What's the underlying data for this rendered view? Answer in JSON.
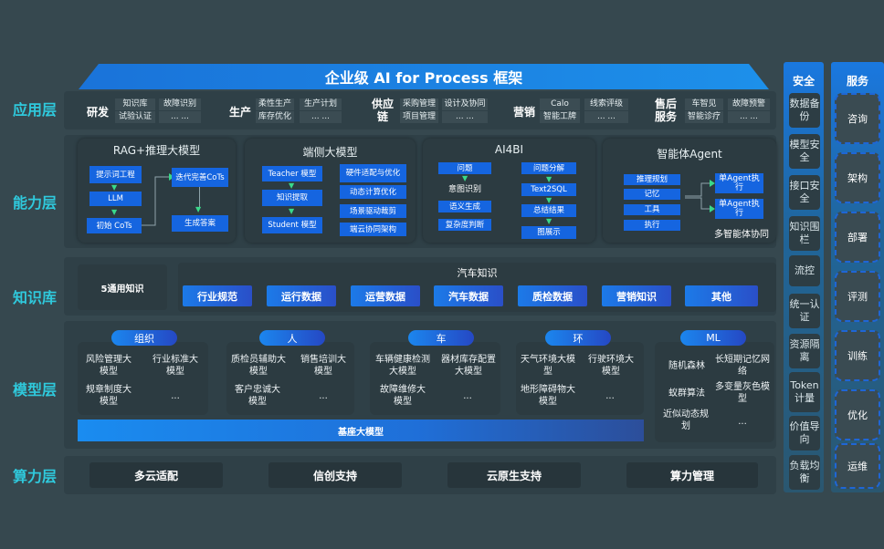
{
  "title": "企业级 AI for Process 框架",
  "layers": [
    "应用层",
    "能力层",
    "知识库",
    "模型层",
    "算力层"
  ],
  "app": [
    {
      "name": "研发",
      "items": [
        "知识库",
        "试验认证",
        "故障识别",
        "... ..."
      ]
    },
    {
      "name": "生产",
      "items": [
        "柔性生产",
        "库存优化",
        "生产计划",
        "... ..."
      ]
    },
    {
      "name": "供应链",
      "items": [
        "采购管理",
        "项目管理",
        "设计及协同",
        "... ..."
      ]
    },
    {
      "name": "营销",
      "items": [
        "Calo",
        "智能工牌",
        "线索评级",
        "... ..."
      ]
    },
    {
      "name": "售后服务",
      "items": [
        "车智见",
        "智能诊疗",
        "故障预警",
        "... ..."
      ]
    }
  ],
  "capability": {
    "rag": {
      "title": "RAG+推理大模型",
      "boxes": [
        "提示词工程",
        "LLM",
        "初始 CoTs",
        "迭代完善CoTs",
        "生成答案"
      ]
    },
    "edge": {
      "title": "端侧大模型",
      "left": [
        "Teacher 模型",
        "知识提取",
        "Student 模型"
      ],
      "right": [
        "硬件适配与优化",
        "动态计算优化",
        "场景驱动裁剪",
        "端云协同架构"
      ]
    },
    "ai4bi": {
      "title": "AI4BI",
      "left": [
        "问题",
        "意图识别",
        "语义生成",
        "复杂度判断"
      ],
      "right": [
        "问题分解",
        "Text2SQL",
        "总结结果",
        "图展示"
      ]
    },
    "agent": {
      "title": "智能体Agent",
      "left": [
        "推理规划",
        "记忆",
        "工具",
        "执行"
      ],
      "right": [
        "单Agent执行",
        "单Agent执行"
      ],
      "footer": "多智能体协同"
    }
  },
  "knowledge": {
    "general": "5通用知识",
    "auto_title": "汽车知识",
    "chips": [
      "行业规范",
      "运行数据",
      "运营数据",
      "汽车数据",
      "质检数据",
      "营销知识",
      "其他"
    ]
  },
  "models": {
    "groups": [
      {
        "name": "组织",
        "items": [
          "风险管理大模型",
          "行业标准大模型",
          "规章制度大模型",
          "..."
        ]
      },
      {
        "name": "人",
        "items": [
          "质检员辅助大模型",
          "销售培训大模型",
          "客户忠诚大模型",
          "..."
        ]
      },
      {
        "name": "车",
        "items": [
          "车辆健康检测大模型",
          "器材库存配置大模型",
          "故障维修大模型",
          "..."
        ]
      },
      {
        "name": "环",
        "items": [
          "天气环境大模型",
          "行驶环境大模型",
          "地形障碍物大模型",
          "..."
        ]
      },
      {
        "name": "ML",
        "items": [
          "随机森林",
          "长短期记忆网络",
          "蚁群算法",
          "多变量灰色模型",
          "近似动态规划",
          "..."
        ]
      }
    ],
    "base": "基座大模型"
  },
  "compute": [
    "多云适配",
    "信创支持",
    "云原生支持",
    "算力管理"
  ],
  "security": {
    "title": "安全",
    "items": [
      "数据备份",
      "模型安全",
      "接口安全",
      "知识围栏",
      "流控",
      "统一认证",
      "资源隔离",
      "Token计量",
      "价值导向",
      "负载均衡"
    ]
  },
  "services": {
    "title": "服务",
    "items": [
      "咨询",
      "架构",
      "部署",
      "评测",
      "训练",
      "优化",
      "运维"
    ]
  },
  "colors": {
    "background": "#36484f",
    "accent": "#1565e0",
    "layer_label": "#2fc9dc",
    "arrow": "#39d98a"
  }
}
